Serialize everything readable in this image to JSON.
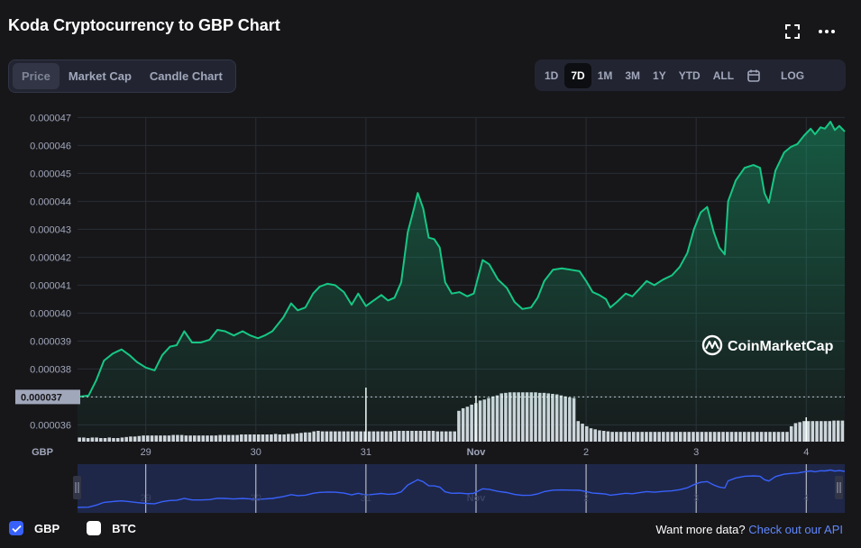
{
  "header": {
    "title": "Koda Cryptocurrency to GBP Chart"
  },
  "icons": {
    "fullscreen": "fullscreen-icon",
    "more": "more-icon",
    "calendar": "calendar-icon",
    "check": "check-icon"
  },
  "left_tabs": [
    {
      "label": "Price",
      "active": true
    },
    {
      "label": "Market Cap",
      "active": false
    },
    {
      "label": "Candle Chart",
      "active": false
    }
  ],
  "right_tabs": [
    {
      "label": "1D",
      "active": false
    },
    {
      "label": "7D",
      "active": true
    },
    {
      "label": "1M",
      "active": false
    },
    {
      "label": "3M",
      "active": false
    },
    {
      "label": "1Y",
      "active": false
    },
    {
      "label": "YTD",
      "active": false
    },
    {
      "label": "ALL",
      "active": false
    }
  ],
  "log_label": "LOG",
  "watermark": "CoinMarketCap",
  "footer": {
    "gbp_label": "GBP",
    "gbp_checked": true,
    "btc_label": "BTC",
    "btc_checked": false,
    "prompt": "Want more data?",
    "link": "Check out our API"
  },
  "colors": {
    "line": "#16c784",
    "volume": "#d3d6de",
    "nav_line": "#3861fb",
    "nav_fill": "#222f5a",
    "accent": "#3861fb",
    "background": "#17171a"
  },
  "chart_data": {
    "type": "line",
    "currency_label": "GBP",
    "y_ticks": [
      "0.000047",
      "0.000046",
      "0.000045",
      "0.000044",
      "0.000043",
      "0.000042",
      "0.000041",
      "0.000040",
      "0.000039",
      "0.000038",
      "0.000037",
      "0.000036"
    ],
    "ylim": [
      3.54e-05,
      4.74e-05
    ],
    "start_value_label": "0.000037",
    "start_value": 3.7e-05,
    "x_ticks": [
      "29",
      "30",
      "31",
      "Nov",
      "2",
      "3",
      "4"
    ],
    "x_tick_positions": [
      1,
      2,
      3,
      4,
      5,
      6,
      7
    ],
    "xlim": [
      0.38,
      7.35
    ],
    "points": [
      [
        0.38,
        3.7e-05
      ],
      [
        0.48,
        3.705e-05
      ],
      [
        0.55,
        3.76e-05
      ],
      [
        0.62,
        3.83e-05
      ],
      [
        0.7,
        3.855e-05
      ],
      [
        0.78,
        3.87e-05
      ],
      [
        0.85,
        3.85e-05
      ],
      [
        0.92,
        3.825e-05
      ],
      [
        1.0,
        3.805e-05
      ],
      [
        1.08,
        3.795e-05
      ],
      [
        1.15,
        3.85e-05
      ],
      [
        1.22,
        3.88e-05
      ],
      [
        1.28,
        3.885e-05
      ],
      [
        1.35,
        3.935e-05
      ],
      [
        1.42,
        3.895e-05
      ],
      [
        1.5,
        3.895e-05
      ],
      [
        1.58,
        3.905e-05
      ],
      [
        1.65,
        3.94e-05
      ],
      [
        1.72,
        3.935e-05
      ],
      [
        1.8,
        3.92e-05
      ],
      [
        1.88,
        3.935e-05
      ],
      [
        1.95,
        3.92e-05
      ],
      [
        2.02,
        3.91e-05
      ],
      [
        2.08,
        3.92e-05
      ],
      [
        2.15,
        3.935e-05
      ],
      [
        2.25,
        3.985e-05
      ],
      [
        2.32,
        4.035e-05
      ],
      [
        2.38,
        4.01e-05
      ],
      [
        2.45,
        4.02e-05
      ],
      [
        2.52,
        4.07e-05
      ],
      [
        2.58,
        4.095e-05
      ],
      [
        2.65,
        4.105e-05
      ],
      [
        2.72,
        4.1e-05
      ],
      [
        2.8,
        4.075e-05
      ],
      [
        2.87,
        4.03e-05
      ],
      [
        2.93,
        4.07e-05
      ],
      [
        3.0,
        4.025e-05
      ],
      [
        3.07,
        4.045e-05
      ],
      [
        3.14,
        4.065e-05
      ],
      [
        3.2,
        4.045e-05
      ],
      [
        3.26,
        4.055e-05
      ],
      [
        3.32,
        4.11e-05
      ],
      [
        3.38,
        4.29e-05
      ],
      [
        3.44,
        4.38e-05
      ],
      [
        3.47,
        4.43e-05
      ],
      [
        3.52,
        4.375e-05
      ],
      [
        3.57,
        4.27e-05
      ],
      [
        3.62,
        4.265e-05
      ],
      [
        3.67,
        4.235e-05
      ],
      [
        3.72,
        4.11e-05
      ],
      [
        3.78,
        4.07e-05
      ],
      [
        3.85,
        4.075e-05
      ],
      [
        3.92,
        4.06e-05
      ],
      [
        3.98,
        4.07e-05
      ],
      [
        4.06,
        4.19e-05
      ],
      [
        4.12,
        4.175e-05
      ],
      [
        4.2,
        4.12e-05
      ],
      [
        4.28,
        4.09e-05
      ],
      [
        4.35,
        4.04e-05
      ],
      [
        4.42,
        4.015e-05
      ],
      [
        4.5,
        4.02e-05
      ],
      [
        4.56,
        4.055e-05
      ],
      [
        4.62,
        4.115e-05
      ],
      [
        4.7,
        4.155e-05
      ],
      [
        4.78,
        4.16e-05
      ],
      [
        4.86,
        4.155e-05
      ],
      [
        4.94,
        4.15e-05
      ],
      [
        5.0,
        4.115e-05
      ],
      [
        5.06,
        4.075e-05
      ],
      [
        5.12,
        4.065e-05
      ],
      [
        5.18,
        4.05e-05
      ],
      [
        5.22,
        4.02e-05
      ],
      [
        5.28,
        4.04e-05
      ],
      [
        5.36,
        4.07e-05
      ],
      [
        5.42,
        4.06e-05
      ],
      [
        5.48,
        4.085e-05
      ],
      [
        5.55,
        4.115e-05
      ],
      [
        5.62,
        4.1e-05
      ],
      [
        5.7,
        4.12e-05
      ],
      [
        5.78,
        4.135e-05
      ],
      [
        5.85,
        4.165e-05
      ],
      [
        5.92,
        4.215e-05
      ],
      [
        5.98,
        4.3e-05
      ],
      [
        6.04,
        4.36e-05
      ],
      [
        6.1,
        4.38e-05
      ],
      [
        6.16,
        4.29e-05
      ],
      [
        6.21,
        4.235e-05
      ],
      [
        6.26,
        4.21e-05
      ],
      [
        6.29,
        4.4e-05
      ],
      [
        6.36,
        4.475e-05
      ],
      [
        6.44,
        4.52e-05
      ],
      [
        6.52,
        4.53e-05
      ],
      [
        6.58,
        4.52e-05
      ],
      [
        6.62,
        4.43e-05
      ],
      [
        6.66,
        4.395e-05
      ],
      [
        6.72,
        4.51e-05
      ],
      [
        6.8,
        4.575e-05
      ],
      [
        6.86,
        4.595e-05
      ],
      [
        6.92,
        4.605e-05
      ],
      [
        6.98,
        4.635e-05
      ],
      [
        7.04,
        4.66e-05
      ],
      [
        7.08,
        4.64e-05
      ],
      [
        7.13,
        4.665e-05
      ],
      [
        7.17,
        4.66e-05
      ],
      [
        7.22,
        4.685e-05
      ],
      [
        7.26,
        4.655e-05
      ],
      [
        7.3,
        4.67e-05
      ],
      [
        7.35,
        4.65e-05
      ]
    ],
    "volume": [
      0.08,
      0.08,
      0.07,
      0.08,
      0.08,
      0.07,
      0.07,
      0.08,
      0.07,
      0.07,
      0.08,
      0.09,
      0.1,
      0.1,
      0.11,
      0.12,
      0.12,
      0.12,
      0.12,
      0.12,
      0.12,
      0.12,
      0.13,
      0.13,
      0.13,
      0.12,
      0.12,
      0.12,
      0.12,
      0.12,
      0.12,
      0.12,
      0.12,
      0.13,
      0.13,
      0.13,
      0.13,
      0.13,
      0.14,
      0.14,
      0.14,
      0.14,
      0.14,
      0.14,
      0.14,
      0.14,
      0.15,
      0.14,
      0.14,
      0.15,
      0.15,
      0.16,
      0.17,
      0.18,
      0.18,
      0.2,
      0.21,
      0.2,
      0.2,
      0.2,
      0.2,
      0.2,
      0.2,
      0.2,
      0.2,
      0.2,
      0.2,
      0.2,
      0.2,
      0.2,
      0.2,
      0.2,
      0.2,
      0.2,
      0.21,
      0.21,
      0.21,
      0.21,
      0.21,
      0.21,
      0.21,
      0.21,
      0.21,
      0.21,
      0.2,
      0.2,
      0.2,
      0.2,
      0.2,
      0.6,
      0.65,
      0.68,
      0.72,
      0.75,
      0.8,
      0.82,
      0.85,
      0.88,
      0.9,
      0.94,
      0.95,
      0.96,
      0.96,
      0.96,
      0.96,
      0.96,
      0.96,
      0.96,
      0.95,
      0.95,
      0.94,
      0.93,
      0.92,
      0.9,
      0.88,
      0.86,
      0.85,
      0.4,
      0.35,
      0.3,
      0.26,
      0.24,
      0.22,
      0.21,
      0.2,
      0.19,
      0.19,
      0.19,
      0.19,
      0.19,
      0.19,
      0.19,
      0.19,
      0.19,
      0.19,
      0.19,
      0.19,
      0.19,
      0.19,
      0.19,
      0.19,
      0.19,
      0.19,
      0.19,
      0.19,
      0.19,
      0.19,
      0.19,
      0.19,
      0.19,
      0.19,
      0.19,
      0.19,
      0.19,
      0.19,
      0.19,
      0.19,
      0.19,
      0.19,
      0.19,
      0.19,
      0.19,
      0.19,
      0.19,
      0.19,
      0.19,
      0.19,
      0.3,
      0.36,
      0.38,
      0.4,
      0.4,
      0.4,
      0.4,
      0.4,
      0.4,
      0.4,
      0.41,
      0.41,
      0.41
    ],
    "volume_spikes": [
      [
        3.0,
        1.0
      ],
      [
        4.0,
        0.85
      ],
      [
        7.0,
        0.45
      ]
    ],
    "grid": true,
    "legend": "none"
  }
}
